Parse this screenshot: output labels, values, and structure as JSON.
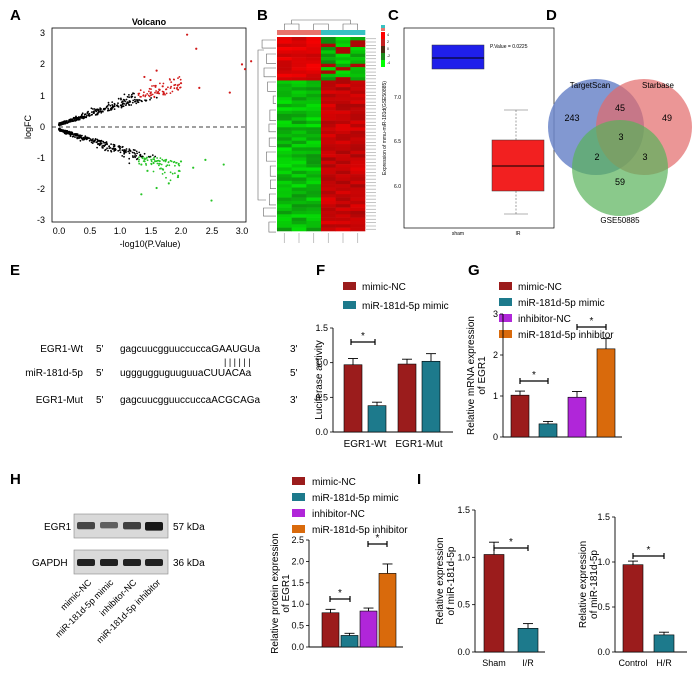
{
  "panel_labels": [
    "A",
    "B",
    "C",
    "D",
    "E",
    "F",
    "G",
    "H",
    "I"
  ],
  "volcano": {
    "title": "Volcano",
    "xlabel": "-log10(P.Value)",
    "ylabel": "logFC",
    "xticks": [
      "0.0",
      "0.5",
      "1.0",
      "1.5",
      "2.0",
      "2.5",
      "3.0"
    ],
    "yticks": [
      "3",
      "2",
      "1",
      "0",
      "-1",
      "-2",
      "-3"
    ]
  },
  "heatmap": {
    "legend_values": [
      "4",
      "2",
      "0",
      "-2",
      "-4"
    ],
    "group_colors": [
      "#e8736c",
      "#36c2c2"
    ]
  },
  "boxplot": {
    "pvalue": "P.Value = 0.0225",
    "ylabel": "Expression of mmu-miR-181d(GSE50885)",
    "yticks": [
      "7.0",
      "6.5",
      "6.0"
    ],
    "xticks": [
      "sham",
      "IR"
    ]
  },
  "venn": {
    "labels": [
      "TargetScan",
      "Starbase",
      "GSE50885"
    ],
    "counts": [
      "243",
      "45",
      "49",
      "3",
      "2",
      "3",
      "59"
    ]
  },
  "sequences": {
    "rows": [
      {
        "name": "EGR1-Wt",
        "p5": "5'",
        "seq": "gagcuucgguuccucca",
        "hl": "GAAUGU",
        "tail": "a",
        "p3": "3'"
      },
      {
        "name": "miR-181d-5p",
        "p5": "5'",
        "seq": "ugggugguguuguua",
        "hl": "CUUACA",
        "tail": "a",
        "p3": "5'"
      },
      {
        "name": "EGR1-Mut",
        "p5": "5'",
        "seq": "gagcuucgguuccucca",
        "hl": "ACGCAG",
        "tail": "a",
        "p3": "3'"
      }
    ],
    "pairing": "| | | | | |"
  },
  "colors": {
    "mimic_nc": "#9b1c1c",
    "mimic": "#1d7a8c",
    "inhibitor_nc": "#b026d9",
    "inhibitor": "#d96a0c"
  },
  "legend_two": [
    "mimic-NC",
    "miR-181d-5p mimic"
  ],
  "legend_four": [
    "mimic-NC",
    "miR-181d-5p mimic",
    "inhibitor-NC",
    "miR-181d-5p inhibitor"
  ],
  "blot": {
    "rows": [
      "EGR1",
      "GAPDH"
    ],
    "sizes": [
      "57 kDa",
      "36 kDa"
    ],
    "lanes": [
      "mimic-NC",
      "miR-181d-5p mimic",
      "inhibitor-NC",
      "miR-181d-5p inhibitor"
    ]
  },
  "sig": "*",
  "chart_data": [
    {
      "panel": "F",
      "type": "bar",
      "ylabel": "Luciferase activity",
      "ylim": [
        0,
        1.5
      ],
      "yticks": [
        "0.0",
        "0.5",
        "1.0",
        "1.5"
      ],
      "categories": [
        "EGR1-Wt",
        "EGR1-Mut"
      ],
      "series": [
        {
          "name": "mimic-NC",
          "values": [
            0.97,
            0.98
          ],
          "err": [
            0.09,
            0.07
          ]
        },
        {
          "name": "miR-181d-5p mimic",
          "values": [
            0.38,
            1.02
          ],
          "err": [
            0.05,
            0.11
          ]
        }
      ]
    },
    {
      "panel": "G",
      "type": "bar",
      "ylabel": "Relative mRNA expression of EGR1",
      "ylim": [
        0,
        3
      ],
      "yticks": [
        "0",
        "1",
        "2",
        "3"
      ],
      "categories": [
        "mimic-NC",
        "miR-181d-5p mimic",
        "inhibitor-NC",
        "miR-181d-5p inhibitor"
      ],
      "values": [
        1.02,
        0.32,
        0.97,
        2.15
      ],
      "err": [
        0.1,
        0.06,
        0.14,
        0.25
      ]
    },
    {
      "panel": "H",
      "type": "bar",
      "ylabel": "Relative protein expression of EGR1",
      "ylim": [
        0,
        2.5
      ],
      "yticks": [
        "0.0",
        "0.5",
        "1.0",
        "1.5",
        "2.0",
        "2.5"
      ],
      "categories": [
        "mimic-NC",
        "miR-181d-5p mimic",
        "inhibitor-NC",
        "miR-181d-5p inhibitor"
      ],
      "values": [
        0.8,
        0.27,
        0.84,
        1.72
      ],
      "err": [
        0.08,
        0.05,
        0.07,
        0.22
      ]
    },
    {
      "panel": "I-left",
      "type": "bar",
      "ylabel": "Relative expression of miR-181d-5p",
      "ylim": [
        0,
        1.5
      ],
      "yticks": [
        "0.0",
        "0.5",
        "1.0",
        "1.5"
      ],
      "categories": [
        "Sham",
        "I/R"
      ],
      "values": [
        1.03,
        0.25
      ],
      "err": [
        0.13,
        0.05
      ]
    },
    {
      "panel": "I-right",
      "type": "bar",
      "ylabel": "Relative expression of miR-181d-5p",
      "ylim": [
        0,
        1.5
      ],
      "yticks": [
        "0.0",
        "0.5",
        "1.0",
        "1.5"
      ],
      "categories": [
        "Control",
        "H/R"
      ],
      "values": [
        0.97,
        0.19
      ],
      "err": [
        0.04,
        0.03
      ]
    }
  ]
}
